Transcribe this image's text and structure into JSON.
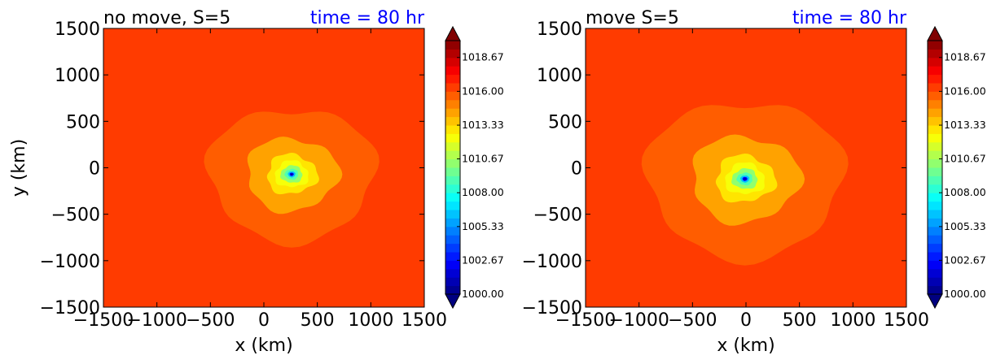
{
  "colors": {
    "background": "#f79400",
    "time_text": "#0000ff",
    "axis": "#000000",
    "colormap": "jet"
  },
  "chart_data": [
    {
      "type": "heatmap",
      "title_left": "no move, S=5",
      "title_right": "time = 80 hr",
      "xlabel": "x (km)",
      "ylabel": "y (km)",
      "xlim": [
        -1500,
        1500
      ],
      "ylim": [
        -1500,
        1500
      ],
      "xticks": [
        "−1500",
        "−1000",
        "−500",
        "0",
        "500",
        "1000",
        "1500"
      ],
      "yticks": [
        "1500",
        "1000",
        "500",
        "0",
        "−500",
        "−1000",
        "−1500"
      ],
      "field": "contour-filled pressure field",
      "background_level": 1016.5,
      "center": [
        260,
        -70
      ],
      "center_min": 1000.5,
      "outer_radius": 780,
      "colorbar": {
        "min": 1000.0,
        "max": 1020.0,
        "ticks": [
          "1018.67",
          "1016.00",
          "1013.33",
          "1010.67",
          "1008.00",
          "1005.33",
          "1002.67",
          "1000.00"
        ],
        "extend": "both"
      }
    },
    {
      "type": "heatmap",
      "title_left": "move S=5",
      "title_right": "time = 80 hr",
      "xlabel": "x (km)",
      "ylabel": "",
      "xlim": [
        -1500,
        1500
      ],
      "ylim": [
        -1500,
        1500
      ],
      "xticks": [
        "−1500",
        "−1000",
        "−500",
        "0",
        "500",
        "1000",
        "1500"
      ],
      "yticks": [
        "1500",
        "1000",
        "500",
        "0",
        "−500",
        "−1000",
        "−1500"
      ],
      "field": "contour-filled pressure field",
      "background_level": 1016.5,
      "center": [
        -10,
        -120
      ],
      "center_min": 1001.0,
      "outer_radius": 920,
      "colorbar": {
        "min": 1000.0,
        "max": 1020.0,
        "ticks": [
          "1018.67",
          "1016.00",
          "1013.33",
          "1010.67",
          "1008.00",
          "1005.33",
          "1002.67",
          "1000.00"
        ],
        "extend": "both"
      }
    }
  ]
}
